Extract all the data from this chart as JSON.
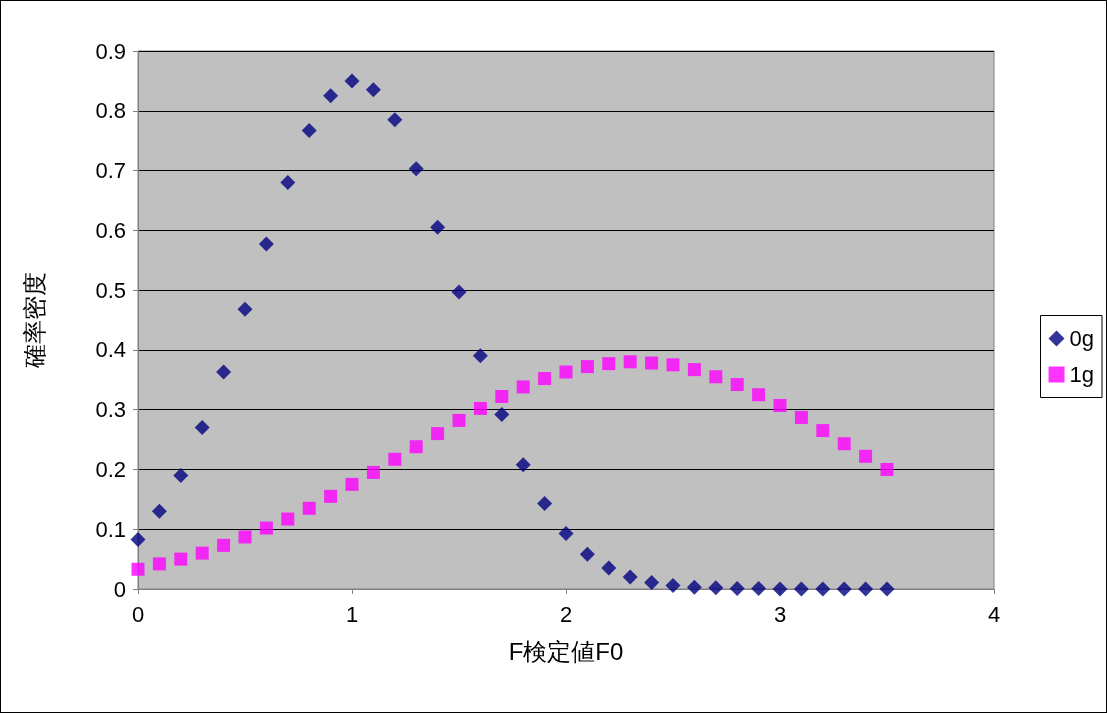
{
  "chart_data": {
    "type": "scatter",
    "xlabel": "F検定値F0",
    "ylabel": "確率密度",
    "x": [
      0,
      0.1,
      0.2,
      0.3,
      0.4,
      0.5,
      0.6,
      0.7,
      0.8,
      0.9,
      1,
      1.1,
      1.2,
      1.3,
      1.4,
      1.5,
      1.6,
      1.7,
      1.8,
      1.9,
      2,
      2.1,
      2.2,
      2.3,
      2.4,
      2.5,
      2.6,
      2.7,
      2.8,
      2.9,
      3,
      3.1,
      3.2,
      3.3,
      3.4,
      3.5
    ],
    "series": [
      {
        "name": "0g",
        "color": "#000080",
        "marker": "diamond",
        "values": [
          0.083,
          0.13,
          0.19,
          0.27,
          0.363,
          0.468,
          0.577,
          0.68,
          0.767,
          0.825,
          0.85,
          0.835,
          0.785,
          0.703,
          0.605,
          0.497,
          0.39,
          0.292,
          0.208,
          0.143,
          0.093,
          0.058,
          0.035,
          0.02,
          0.011,
          0.006,
          0.003,
          0.002,
          0.001,
          0.001,
          0,
          0,
          0,
          0,
          0,
          0
        ]
      },
      {
        "name": "1g",
        "color": "#ff00ff",
        "marker": "square",
        "values": [
          0.033,
          0.042,
          0.05,
          0.06,
          0.073,
          0.087,
          0.102,
          0.117,
          0.135,
          0.155,
          0.175,
          0.195,
          0.217,
          0.238,
          0.26,
          0.282,
          0.302,
          0.322,
          0.338,
          0.352,
          0.363,
          0.372,
          0.377,
          0.38,
          0.378,
          0.375,
          0.367,
          0.355,
          0.342,
          0.325,
          0.307,
          0.287,
          0.265,
          0.243,
          0.222,
          0.2
        ]
      }
    ],
    "xlim": [
      0,
      4
    ],
    "xticks": [
      0,
      1,
      2,
      3,
      4
    ],
    "ylim": [
      0,
      0.9
    ],
    "yticks": [
      0,
      0.1,
      0.2,
      0.3,
      0.4,
      0.5,
      0.6,
      0.7,
      0.8,
      0.9
    ],
    "grid": "y",
    "legend": "right"
  }
}
